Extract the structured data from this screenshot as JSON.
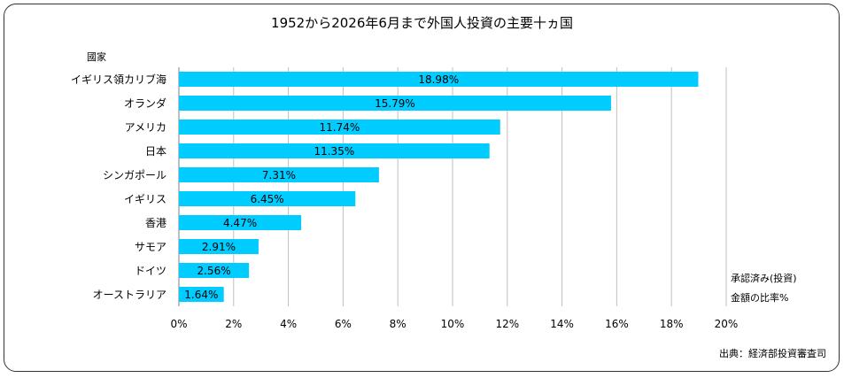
{
  "chart_data": {
    "type": "bar",
    "orientation": "horizontal",
    "title": "1952から2026年6月まで外国人投資の主要十ヵ国",
    "ylabel": "國家",
    "xlabel_lines": [
      "承認済み(投資)",
      "金額の比率%"
    ],
    "source": "出典：経済部投資審査司",
    "categories": [
      "イギリス領カリブ海",
      "オランダ",
      "アメリカ",
      "日本",
      "シンガポール",
      "イギリス",
      "香港",
      "サモア",
      "ドイツ",
      "オーストラリア"
    ],
    "values": [
      18.98,
      15.79,
      11.74,
      11.35,
      7.31,
      6.45,
      4.47,
      2.91,
      2.56,
      1.64
    ],
    "value_labels": [
      "18.98%",
      "15.79%",
      "11.74%",
      "11.35%",
      "7.31%",
      "6.45%",
      "4.47%",
      "2.91%",
      "2.56%",
      "1.64%"
    ],
    "xlim": [
      0,
      20
    ],
    "xticks": [
      "0%",
      "2%",
      "4%",
      "6%",
      "8%",
      "10%",
      "12%",
      "14%",
      "16%",
      "18%",
      "20%"
    ],
    "grid": true,
    "bar_color": "#00CCFF",
    "grid_color": "#BFBFBF"
  }
}
